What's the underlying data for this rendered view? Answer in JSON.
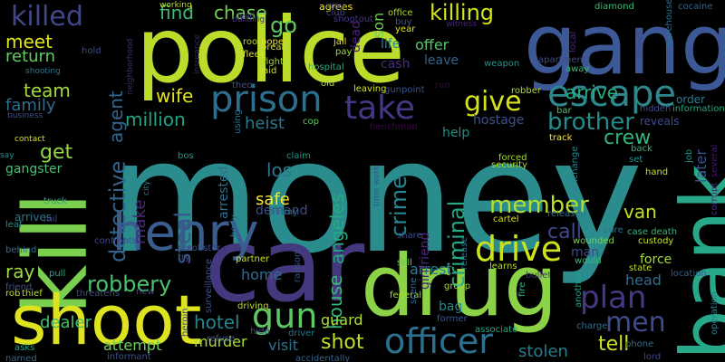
{
  "words": [
    {
      "text": "money",
      "color": "#2b8c8d"
    },
    {
      "text": "police",
      "color": "#bcdc2c"
    },
    {
      "text": "gang",
      "color": "#3d5896"
    },
    {
      "text": "drug",
      "color": "#8bd246"
    },
    {
      "text": "car",
      "color": "#44387e"
    },
    {
      "text": "kill",
      "color": "#7bcf4e"
    },
    {
      "text": "shoot",
      "color": "#dde31e"
    },
    {
      "text": "bank",
      "color": "#27a888"
    },
    {
      "text": "henry",
      "color": "#3a5d8f"
    },
    {
      "text": "prison",
      "color": "#2c6f8d"
    },
    {
      "text": "escape",
      "color": "#2f878d"
    },
    {
      "text": "officer",
      "color": "#2d6f8e"
    },
    {
      "text": "gun",
      "color": "#5ec962"
    },
    {
      "text": "take",
      "color": "#433883"
    },
    {
      "text": "give",
      "color": "#d4e21a"
    },
    {
      "text": "drive",
      "color": "#cde11d"
    },
    {
      "text": "plan",
      "color": "#443983"
    },
    {
      "text": "men",
      "color": "#3e4a89"
    },
    {
      "text": "killed",
      "color": "#3f4788"
    },
    {
      "text": "killing",
      "color": "#d2e21b"
    },
    {
      "text": "go",
      "color": "#5ec962"
    },
    {
      "text": "detective",
      "color": "#33628d"
    },
    {
      "text": "criminal",
      "color": "#23a884"
    },
    {
      "text": "crime",
      "color": "#25858e"
    },
    {
      "text": "angeles",
      "color": "#25ab82"
    },
    {
      "text": "los",
      "color": "#2a778e"
    },
    {
      "text": "house",
      "color": "#36b677"
    },
    {
      "text": "steal",
      "color": "#39568c"
    },
    {
      "text": "robbery",
      "color": "#4ac16d"
    },
    {
      "text": "brother",
      "color": "#228c8d"
    },
    {
      "text": "member",
      "color": "#b5de2b"
    },
    {
      "text": "shot",
      "color": "#c2df23"
    },
    {
      "text": "tell",
      "color": "#d0e11c"
    },
    {
      "text": "hotel",
      "color": "#25858e"
    },
    {
      "text": "million",
      "color": "#20a386"
    },
    {
      "text": "wife",
      "color": "#e4e419"
    },
    {
      "text": "arrive",
      "color": "#26ad81"
    },
    {
      "text": "agent",
      "color": "#31668e"
    },
    {
      "text": "team",
      "color": "#a0da39"
    },
    {
      "text": "family",
      "color": "#2e6e8e"
    },
    {
      "text": "get",
      "color": "#90d743"
    },
    {
      "text": "meet",
      "color": "#e2e418"
    },
    {
      "text": "return",
      "color": "#63cb5f"
    },
    {
      "text": "find",
      "color": "#3fbc73"
    },
    {
      "text": "chase",
      "color": "#75d054"
    },
    {
      "text": "make",
      "color": "#482878"
    },
    {
      "text": "call",
      "color": "#3f4889"
    },
    {
      "text": "crew",
      "color": "#31b57b"
    },
    {
      "text": "heist",
      "color": "#2a788e"
    },
    {
      "text": "safe",
      "color": "#fde725"
    },
    {
      "text": "murder",
      "color": "#addc30"
    },
    {
      "text": "guard",
      "color": "#b0dd2f"
    },
    {
      "text": "van",
      "color": "#c5e021"
    },
    {
      "text": "head",
      "color": "#2f6c8e"
    },
    {
      "text": "dealer",
      "color": "#44bf70"
    },
    {
      "text": "attempt",
      "color": "#6ccd5a"
    },
    {
      "text": "visit",
      "color": "#2d708e"
    },
    {
      "text": "stolen",
      "color": "#287c8e"
    },
    {
      "text": "ray",
      "color": "#9bd93c"
    },
    {
      "text": "gangster",
      "color": "#46c06f"
    },
    {
      "text": "arrested",
      "color": "#2d718e"
    },
    {
      "text": "hostage",
      "color": "#3b518b"
    },
    {
      "text": "arrest",
      "color": "#27808e"
    },
    {
      "text": "home",
      "color": "#2f6b8e"
    },
    {
      "text": "life",
      "color": "#238a8d"
    },
    {
      "text": "offer",
      "color": "#54c568"
    },
    {
      "text": "leave",
      "color": "#33638d"
    },
    {
      "text": "son",
      "color": "#6ece58"
    },
    {
      "text": "later",
      "color": "#3a548c"
    },
    {
      "text": "demand",
      "color": "#3e4c8a"
    },
    {
      "text": "cash",
      "color": "#472c7a"
    },
    {
      "text": "help",
      "color": "#228b8d"
    },
    {
      "text": "dead",
      "color": "#482374"
    },
    {
      "text": "bag",
      "color": "#23898e"
    },
    {
      "text": "girlfriend",
      "color": "#482677"
    },
    {
      "text": "man",
      "color": "#3e4989"
    },
    {
      "text": "order",
      "color": "#277f8e"
    },
    {
      "text": "force",
      "color": "#a2da37"
    },
    {
      "text": "agrees",
      "color": "#f1e51d"
    },
    {
      "text": "working",
      "color": "#bade28"
    },
    {
      "text": "lead",
      "color": "#453882"
    },
    {
      "text": "building",
      "color": "#46327e"
    },
    {
      "text": "gunpoint",
      "color": "#3b528b"
    },
    {
      "text": "year",
      "color": "#e2e418"
    },
    {
      "text": "office",
      "color": "#aadc32"
    },
    {
      "text": "diamond",
      "color": "#3aba76"
    },
    {
      "text": "cocaine",
      "color": "#31688e"
    },
    {
      "text": "warehouse",
      "color": "#2d708e"
    },
    {
      "text": "apartment",
      "color": "#3e4a89"
    },
    {
      "text": "witness",
      "color": "#482475"
    },
    {
      "text": "shootout",
      "color": "#453781"
    },
    {
      "text": "jail",
      "color": "#f1e51d"
    },
    {
      "text": "pay",
      "color": "#9fda3a"
    },
    {
      "text": "flees",
      "color": "#d8e219"
    },
    {
      "text": "fight",
      "color": "#a8db34"
    },
    {
      "text": "hospital",
      "color": "#28ae80"
    },
    {
      "text": "raid",
      "color": "#d5e21a"
    },
    {
      "text": "weapon",
      "color": "#1f958b"
    },
    {
      "text": "robber",
      "color": "#aadc32"
    },
    {
      "text": "bar",
      "color": "#4ac16d"
    },
    {
      "text": "hidden",
      "color": "#3e4c8a"
    },
    {
      "text": "information",
      "color": "#22a785"
    },
    {
      "text": "reveals",
      "color": "#3d4e8a"
    },
    {
      "text": "business",
      "color": "#3b528b"
    },
    {
      "text": "contact",
      "color": "#d8e219"
    },
    {
      "text": "say",
      "color": "#20928c"
    },
    {
      "text": "shooting",
      "color": "#2b748e"
    },
    {
      "text": "insurance",
      "color": "#481f70"
    },
    {
      "text": "room",
      "color": "#b8de29"
    },
    {
      "text": "pope",
      "color": "#ece51b"
    },
    {
      "text": "theo",
      "color": "#3b528b"
    },
    {
      "text": "cop",
      "color": "#5ec962"
    },
    {
      "text": "henchman",
      "color": "#440154"
    },
    {
      "text": "claim",
      "color": "#1f968b"
    },
    {
      "text": "bos",
      "color": "#1f998a"
    },
    {
      "text": "track",
      "color": "#fde725"
    },
    {
      "text": "back",
      "color": "#2eb37c"
    },
    {
      "text": "set",
      "color": "#21908d"
    },
    {
      "text": "hand",
      "color": "#c8e020"
    },
    {
      "text": "job",
      "color": "#20928c"
    },
    {
      "text": "security",
      "color": "#addc30"
    },
    {
      "text": "forced",
      "color": "#a5db36"
    },
    {
      "text": "exchange",
      "color": "#26828e"
    },
    {
      "text": "cartel",
      "color": "#d5e21a"
    },
    {
      "text": "released",
      "color": "#2c738e"
    },
    {
      "text": "wounded",
      "color": "#7ad151"
    },
    {
      "text": "sure",
      "color": "#2c728e"
    },
    {
      "text": "would",
      "color": "#3aba76"
    },
    {
      "text": "custody",
      "color": "#c5e021"
    },
    {
      "text": "case death",
      "color": "#33b67a"
    },
    {
      "text": "state",
      "color": "#c0df25"
    },
    {
      "text": "location",
      "color": "#365c8d"
    },
    {
      "text": "charge",
      "color": "#2e6e8e"
    },
    {
      "text": "phone",
      "color": "#2e6d8e"
    },
    {
      "text": "operation",
      "color": "#2a788e"
    },
    {
      "text": "corrupt",
      "color": "#482979"
    },
    {
      "text": "several",
      "color": "#481a6c"
    },
    {
      "text": "truck",
      "color": "#22a884"
    },
    {
      "text": "arrives",
      "color": "#2a768e"
    },
    {
      "text": "leaf",
      "color": "#228d8d"
    },
    {
      "text": "behind",
      "color": "#2f6b8e"
    },
    {
      "text": "friend",
      "color": "#3b528b"
    },
    {
      "text": "rob",
      "color": "#c2df23"
    },
    {
      "text": "thief",
      "color": "#b5de2b"
    },
    {
      "text": "pull",
      "color": "#25ac82"
    },
    {
      "text": "threatens",
      "color": "#3e4a89"
    },
    {
      "text": "confronts",
      "color": "#404688"
    },
    {
      "text": "mobster",
      "color": "#3d4d8a"
    },
    {
      "text": "surveillance",
      "color": "#3a548c"
    },
    {
      "text": "partner",
      "color": "#d0e11c"
    },
    {
      "text": "driving",
      "color": "#bddf26"
    },
    {
      "text": "hide",
      "color": "#3e4c8a"
    },
    {
      "text": "driver",
      "color": "#2a768e"
    },
    {
      "text": "body",
      "color": "#2c728e"
    },
    {
      "text": "heroin",
      "color": "#3d4d8a"
    },
    {
      "text": "refuse",
      "color": "#39568c"
    },
    {
      "text": "sell",
      "color": "#6ece58"
    },
    {
      "text": "group",
      "color": "#addc30"
    },
    {
      "text": "learns",
      "color": "#b5de2b"
    },
    {
      "text": "bullet",
      "color": "#46327e"
    },
    {
      "text": "former",
      "color": "#38598c"
    },
    {
      "text": "associate",
      "color": "#22a785"
    },
    {
      "text": "federal",
      "color": "#a8db34"
    },
    {
      "text": "share",
      "color": "#3d4e8a"
    },
    {
      "text": "scene",
      "color": "#2d708e"
    },
    {
      "text": "fire",
      "color": "#30b47c"
    },
    {
      "text": "another",
      "color": "#1fa088"
    },
    {
      "text": "jimmy",
      "color": "#2c728e"
    },
    {
      "text": "try",
      "color": "#3e4c8a"
    },
    {
      "text": "asks",
      "color": "#20a386"
    },
    {
      "text": "named",
      "color": "#31688e"
    },
    {
      "text": "informant",
      "color": "#3a548c"
    },
    {
      "text": "accidentally",
      "color": "#33638d"
    },
    {
      "text": "time work",
      "color": "#3b528b"
    },
    {
      "text": "break",
      "color": "#c8e020"
    },
    {
      "text": "old",
      "color": "#a8db34"
    },
    {
      "text": "leaving",
      "color": "#d5e21a"
    },
    {
      "text": "run",
      "color": "#440154"
    },
    {
      "text": "new",
      "color": "#3e4989"
    },
    {
      "text": "club",
      "color": "#3f4788"
    },
    {
      "text": "way",
      "color": "#3f4788"
    },
    {
      "text": "buy",
      "color": "#3b528b"
    },
    {
      "text": "neighborhood",
      "color": "#482677"
    },
    {
      "text": "hold",
      "color": "#3e4c8a"
    },
    {
      "text": "local",
      "color": "#482878"
    },
    {
      "text": "street",
      "color": "#3e4c8a"
    },
    {
      "text": "away",
      "color": "#35b779"
    },
    {
      "text": "city",
      "color": "#26828e"
    },
    {
      "text": "mil",
      "color": "#3e4989"
    },
    {
      "text": "using",
      "color": "#2c728e"
    },
    {
      "text": "ransom",
      "color": "#3d4e8a"
    },
    {
      "text": "release",
      "color": "#2c738e"
    },
    {
      "text": "lord",
      "color": "#3e4989"
    }
  ]
}
